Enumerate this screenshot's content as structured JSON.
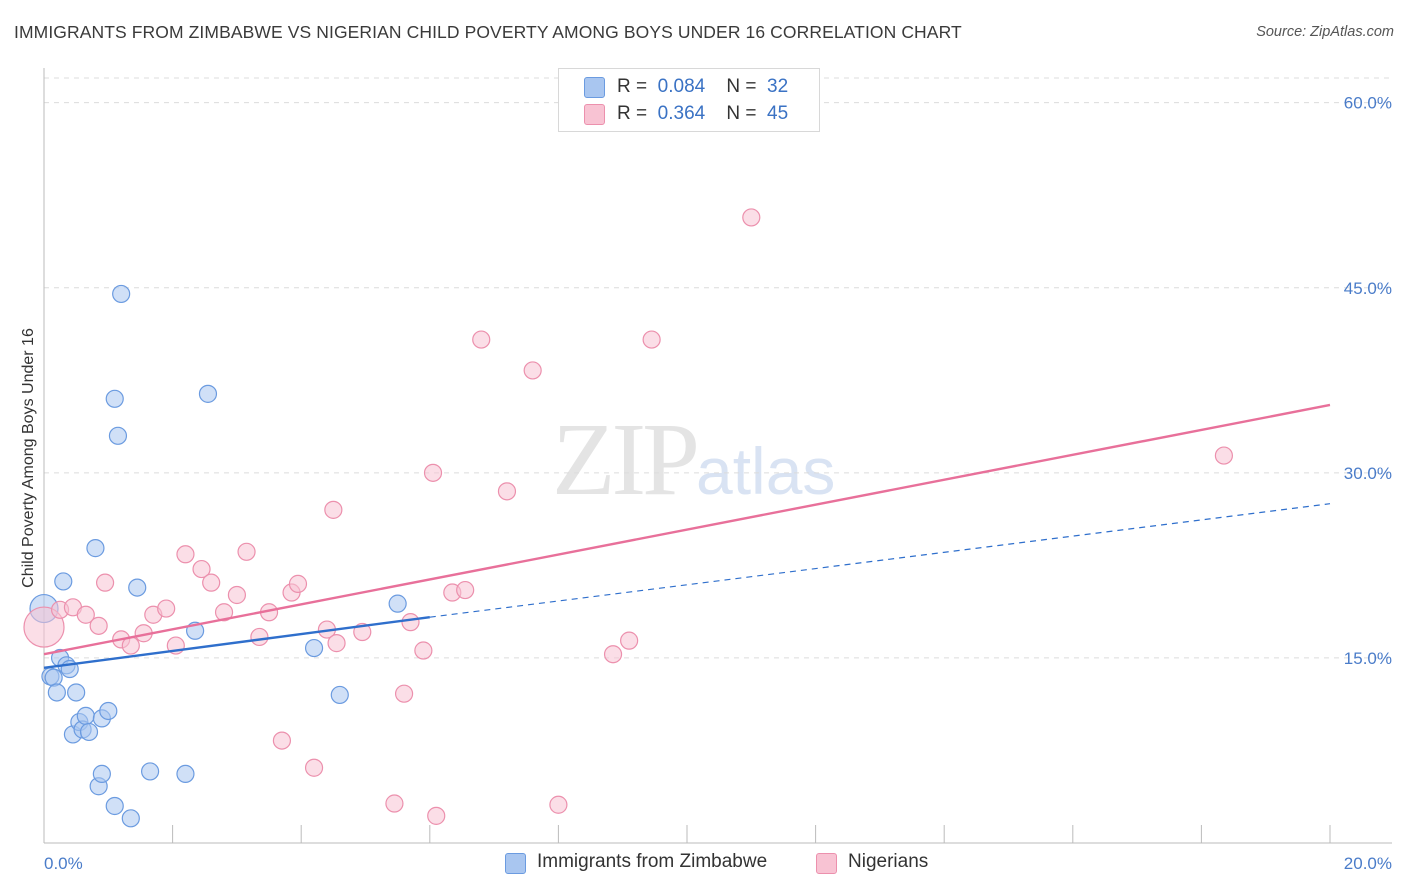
{
  "title": "IMMIGRANTS FROM ZIMBABWE VS NIGERIAN CHILD POVERTY AMONG BOYS UNDER 16 CORRELATION CHART",
  "source": "Source: ZipAtlas.com",
  "watermark": {
    "zip": "ZIP",
    "atlas": "atlas"
  },
  "legend": {
    "r_label": "R =",
    "n_label": "N =",
    "rows": [
      {
        "r": "0.084",
        "n": "32",
        "color": "#a9c6f0",
        "border": "#6b9be0"
      },
      {
        "r": "0.364",
        "n": "45",
        "color": "#f8c3d3",
        "border": "#ec90ad"
      }
    ]
  },
  "bottom_legend": [
    {
      "label": "Immigrants from Zimbabwe",
      "color": "#a9c6f0",
      "border": "#6b9be0"
    },
    {
      "label": "Nigerians",
      "color": "#f8c3d3",
      "border": "#ec90ad"
    }
  ],
  "chart_data": {
    "type": "scatter",
    "title": "IMMIGRANTS FROM ZIMBABWE VS NIGERIAN CHILD POVERTY AMONG BOYS UNDER 16 CORRELATION CHART",
    "xlabel": "",
    "ylabel": "Child Poverty Among Boys Under 16",
    "xlim": [
      0,
      20
    ],
    "ylim": [
      0,
      62
    ],
    "x_tick_labels": [
      "0.0%",
      "20.0%"
    ],
    "y_ticks": [
      15,
      30,
      45,
      60
    ],
    "y_tick_labels": [
      "15.0%",
      "30.0%",
      "45.0%",
      "60.0%"
    ],
    "grid": true,
    "series": [
      {
        "name": "Immigrants from Zimbabwe",
        "color": "#a9c6f0",
        "stroke": "#6b9be0",
        "line_color": "#2f6fcc",
        "trend": {
          "x0": 0,
          "y0": 14.2,
          "x1": 6.0,
          "y1": 18.3,
          "dash_to_x": 20,
          "dash_to_y": 27.5
        },
        "points": [
          [
            0.0,
            19.0
          ],
          [
            0.1,
            13.5
          ],
          [
            0.15,
            13.4
          ],
          [
            0.2,
            12.2
          ],
          [
            0.25,
            15.0
          ],
          [
            0.3,
            21.2
          ],
          [
            0.35,
            14.4
          ],
          [
            0.4,
            14.1
          ],
          [
            0.45,
            8.8
          ],
          [
            0.5,
            12.2
          ],
          [
            0.55,
            9.8
          ],
          [
            0.6,
            9.2
          ],
          [
            0.65,
            10.3
          ],
          [
            0.7,
            9.0
          ],
          [
            0.8,
            23.9
          ],
          [
            0.85,
            4.6
          ],
          [
            0.9,
            10.1
          ],
          [
            0.9,
            5.6
          ],
          [
            1.0,
            10.7
          ],
          [
            1.1,
            3.0
          ],
          [
            1.1,
            36.0
          ],
          [
            1.15,
            33.0
          ],
          [
            1.2,
            44.5
          ],
          [
            1.35,
            2.0
          ],
          [
            1.45,
            20.7
          ],
          [
            1.65,
            5.8
          ],
          [
            2.2,
            5.6
          ],
          [
            2.35,
            17.2
          ],
          [
            2.55,
            36.4
          ],
          [
            4.2,
            15.8
          ],
          [
            4.6,
            12.0
          ],
          [
            5.5,
            19.4
          ]
        ]
      },
      {
        "name": "Nigerians",
        "color": "#f8c3d3",
        "stroke": "#ec90ad",
        "line_color": "#e8709a",
        "trend": {
          "x0": 0,
          "y0": 15.3,
          "x1": 20,
          "y1": 35.5
        },
        "points": [
          [
            0.0,
            17.5
          ],
          [
            0.25,
            18.9
          ],
          [
            0.45,
            19.1
          ],
          [
            0.65,
            18.5
          ],
          [
            0.85,
            17.6
          ],
          [
            0.95,
            21.1
          ],
          [
            1.2,
            16.5
          ],
          [
            1.35,
            16.0
          ],
          [
            1.55,
            17.0
          ],
          [
            1.7,
            18.5
          ],
          [
            1.9,
            19.0
          ],
          [
            2.05,
            16.0
          ],
          [
            2.2,
            23.4
          ],
          [
            2.45,
            22.2
          ],
          [
            2.6,
            21.1
          ],
          [
            2.8,
            18.7
          ],
          [
            3.0,
            20.1
          ],
          [
            3.15,
            23.6
          ],
          [
            3.35,
            16.7
          ],
          [
            3.5,
            18.7
          ],
          [
            3.85,
            20.3
          ],
          [
            3.95,
            21.0
          ],
          [
            3.7,
            8.3
          ],
          [
            4.2,
            6.1
          ],
          [
            4.5,
            27.0
          ],
          [
            4.4,
            17.3
          ],
          [
            4.55,
            16.2
          ],
          [
            4.95,
            17.1
          ],
          [
            5.45,
            3.2
          ],
          [
            5.6,
            12.1
          ],
          [
            5.7,
            17.9
          ],
          [
            5.9,
            15.6
          ],
          [
            6.05,
            30.0
          ],
          [
            6.1,
            2.2
          ],
          [
            6.35,
            20.3
          ],
          [
            6.55,
            20.5
          ],
          [
            6.8,
            40.8
          ],
          [
            7.2,
            28.5
          ],
          [
            7.6,
            38.3
          ],
          [
            8.0,
            3.1
          ],
          [
            8.85,
            15.3
          ],
          [
            9.1,
            16.4
          ],
          [
            9.45,
            40.8
          ],
          [
            11.0,
            50.7
          ],
          [
            18.35,
            31.4
          ]
        ]
      }
    ]
  }
}
